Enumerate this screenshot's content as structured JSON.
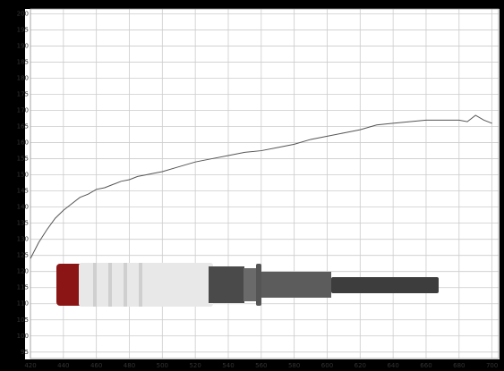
{
  "chart_data": {
    "type": "line",
    "x": [
      420,
      425,
      430,
      435,
      440,
      445,
      450,
      455,
      460,
      465,
      470,
      475,
      480,
      485,
      490,
      495,
      500,
      510,
      520,
      530,
      540,
      550,
      560,
      570,
      580,
      590,
      600,
      610,
      620,
      630,
      640,
      650,
      660,
      670,
      680,
      685,
      690,
      695,
      700
    ],
    "series": [
      {
        "color": "#555555",
        "values": [
          124,
          129,
          133,
          136.5,
          139,
          141,
          143,
          144,
          145.5,
          146,
          147,
          148,
          148.5,
          149.5,
          150,
          150.5,
          151,
          152.5,
          154,
          155,
          156,
          157,
          157.5,
          158.5,
          159.5,
          161,
          162,
          163,
          164,
          165.5,
          166,
          166.5,
          167,
          167,
          167,
          166.5,
          168.5,
          167,
          166
        ]
      }
    ],
    "xlim": [
      420,
      704
    ],
    "ylim": [
      93,
      201.5
    ],
    "xticks": [
      420,
      440,
      460,
      480,
      500,
      520,
      540,
      560,
      580,
      600,
      620,
      640,
      660,
      680,
      700
    ],
    "yticks": [
      95,
      100,
      105,
      110,
      115,
      120,
      125,
      130,
      135,
      140,
      145,
      150,
      155,
      160,
      165,
      170,
      175,
      180,
      185,
      190,
      195,
      200
    ],
    "grid": true
  }
}
